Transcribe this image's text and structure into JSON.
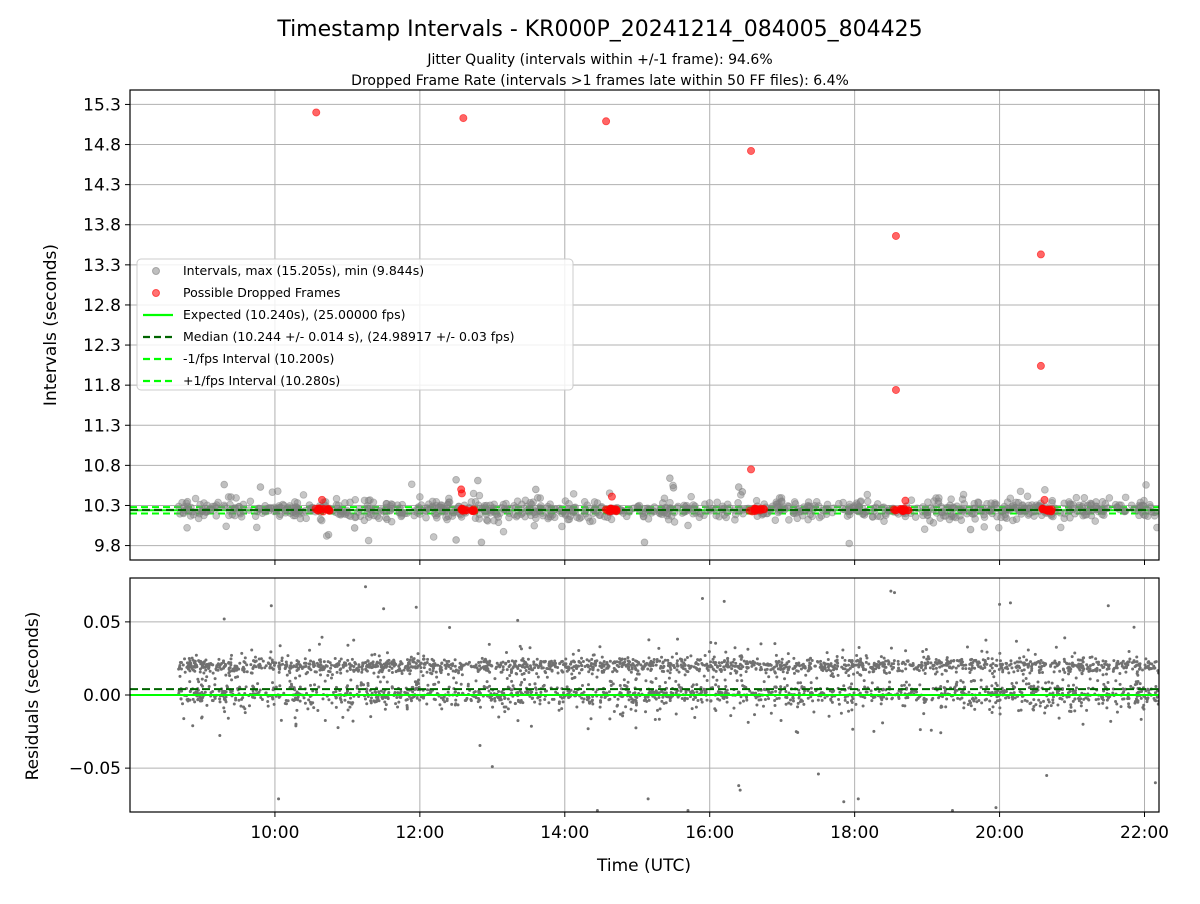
{
  "title": "Timestamp Intervals - KR000P_20241214_084005_804425",
  "subtitle_lines": [
    "Jitter Quality (intervals within +/-1 frame): 94.6%",
    "Dropped Frame Rate (intervals >1 frames late within 50 FF files): 6.4%"
  ],
  "colors": {
    "intervals": "#808080",
    "dropped": "#ff0000",
    "expected": "#00ff00",
    "median": "#006400",
    "fps_bounds": "#00ff00",
    "grid": "#b0b0b0"
  },
  "chart_data": [
    {
      "type": "scatter",
      "name": "intervals",
      "ylabel": "Intervals (seconds)",
      "ylim": [
        9.62,
        15.48
      ],
      "yticks": [
        9.8,
        10.3,
        10.8,
        11.3,
        11.8,
        12.3,
        12.8,
        13.3,
        13.8,
        14.3,
        14.8,
        15.3
      ],
      "ytick_labels": [
        "9.8",
        "10.3",
        "10.8",
        "11.3",
        "11.8",
        "12.3",
        "12.8",
        "13.3",
        "13.8",
        "14.3",
        "14.8",
        "15.3"
      ],
      "xlim_hours": [
        8.0,
        22.2
      ],
      "grid": true,
      "legend_position": "center-left",
      "legend": [
        "Intervals, max (15.205s), min (9.844s)",
        "Possible Dropped Frames",
        "Expected (10.240s), (25.00000 fps)",
        "Median (10.244 +/- 0.014 s), (24.98917 +/- 0.03 fps)",
        "-1/fps Interval (10.200s)",
        "+1/fps Interval (10.280s)"
      ],
      "expected": 10.24,
      "median": 10.244,
      "minus_fps": 10.2,
      "plus_fps": 10.28,
      "x_start_hours": 8.67,
      "x_end_hours": 22.2,
      "dropped_frames": {
        "x_hours": [
          10.57,
          12.6,
          14.57,
          16.57,
          18.57,
          20.57,
          16.57,
          18.57,
          20.57,
          10.65,
          12.57,
          12.58,
          14.65,
          18.7,
          20.62
        ],
        "y": [
          15.2,
          15.13,
          15.09,
          14.72,
          13.66,
          13.43,
          10.75,
          11.74,
          12.04,
          10.37,
          10.5,
          10.45,
          10.41,
          10.36,
          10.37
        ]
      },
      "outliers": {
        "x_hours": [
          9.3,
          12.5,
          12.8,
          15.45,
          15.5,
          16.4,
          16.45,
          12.5,
          12.85,
          15.1,
          13.6,
          9.8,
          11.1,
          19.6
        ],
        "y": [
          10.56,
          10.62,
          10.61,
          10.64,
          10.52,
          10.53,
          10.47,
          9.87,
          9.84,
          9.84,
          10.5,
          10.53,
          10.02,
          10.0
        ]
      }
    },
    {
      "type": "scatter",
      "name": "residuals",
      "ylabel": "Residuals (seconds)",
      "xlabel": "Time (UTC)",
      "ylim": [
        -0.08,
        0.08
      ],
      "yticks": [
        -0.05,
        0.0,
        0.05
      ],
      "ytick_labels": [
        "−0.05",
        "0.00",
        "0.05"
      ],
      "xticks_hours": [
        10,
        12,
        14,
        16,
        18,
        20,
        22
      ],
      "xtick_labels": [
        "10:00",
        "12:00",
        "14:00",
        "16:00",
        "18:00",
        "20:00",
        "22:00"
      ],
      "xlim_hours": [
        8.0,
        22.2
      ],
      "grid": true,
      "expected": 0.0,
      "median": 0.004,
      "outliers": {
        "x_hours": [
          9.3,
          9.95,
          10.05,
          11.25,
          11.5,
          11.95,
          13.0,
          13.35,
          14.45,
          15.15,
          15.7,
          15.9,
          16.2,
          16.4,
          16.42,
          17.5,
          17.85,
          18.05,
          18.5,
          18.55,
          19.35,
          19.95,
          20.0,
          20.15,
          20.65,
          21.5,
          22.15
        ],
        "y": [
          0.052,
          0.061,
          -0.071,
          0.074,
          0.059,
          0.06,
          -0.049,
          0.051,
          -0.079,
          -0.071,
          -0.079,
          0.066,
          0.064,
          -0.062,
          -0.065,
          -0.054,
          -0.073,
          -0.071,
          0.071,
          0.07,
          -0.079,
          -0.077,
          0.062,
          0.063,
          -0.055,
          0.061,
          -0.06
        ]
      }
    }
  ]
}
